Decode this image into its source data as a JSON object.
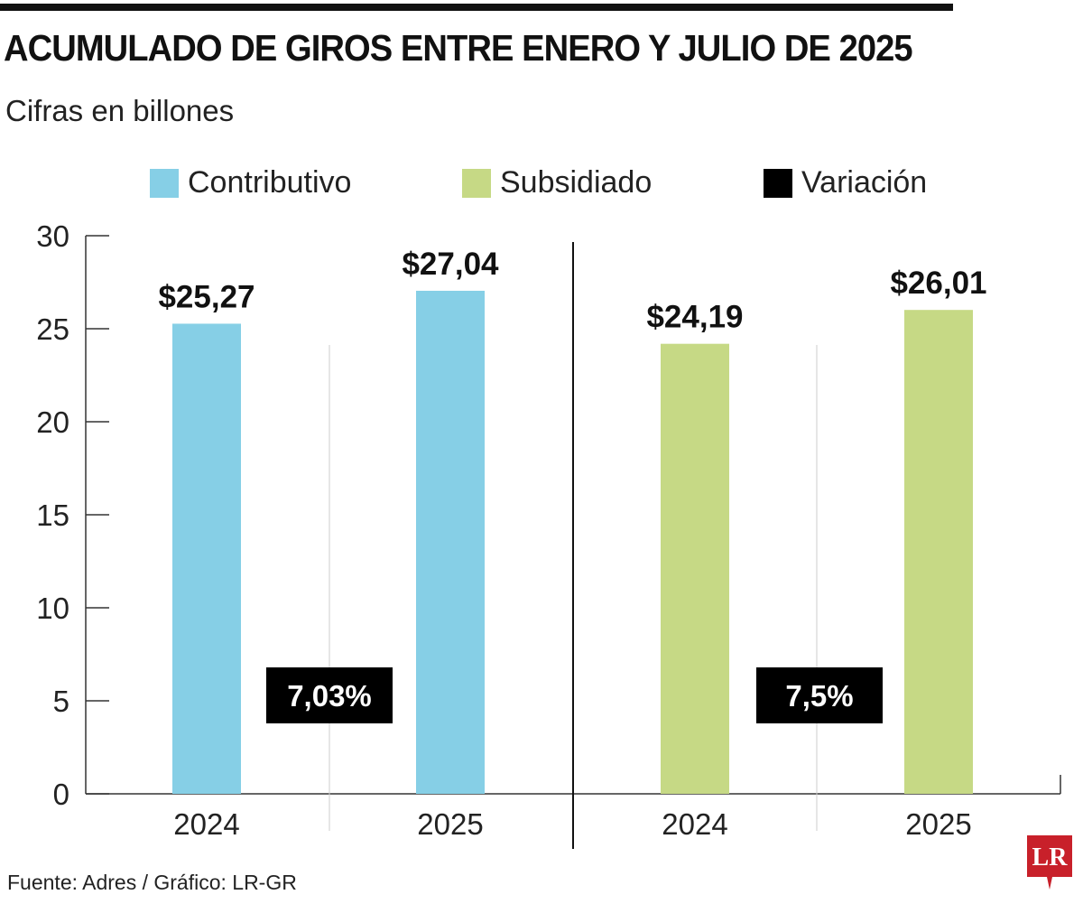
{
  "title": "ACUMULADO DE GIROS ENTRE ENERO Y JULIO DE 2025",
  "subtitle": "Cifras en billones",
  "source": "Fuente: Adres / Gráfico: LR-GR",
  "logo_text": "LR",
  "colors": {
    "contributivo": "#86cfe6",
    "subsidiado": "#c6d985",
    "variacion": "#000000",
    "logo": "#c8202a"
  },
  "chart_data": {
    "type": "bar",
    "title": "ACUMULADO DE GIROS ENTRE ENERO Y JULIO DE 2025",
    "ylim": [
      0,
      30
    ],
    "yticks": [
      0,
      5,
      10,
      15,
      20,
      25,
      30
    ],
    "legend": [
      "Contributivo",
      "Subsidiado",
      "Variación"
    ],
    "legend_placement": "top",
    "groups": [
      {
        "name": "Contributivo",
        "categories": [
          "2024",
          "2025"
        ],
        "values": [
          25.27,
          27.04
        ],
        "labels": [
          "$25,27",
          "$27,04"
        ],
        "variation": "7,03%"
      },
      {
        "name": "Subsidiado",
        "categories": [
          "2024",
          "2025"
        ],
        "values": [
          24.19,
          26.01
        ],
        "labels": [
          "$24,19",
          "$26,01"
        ],
        "variation": "7,5%"
      }
    ]
  }
}
